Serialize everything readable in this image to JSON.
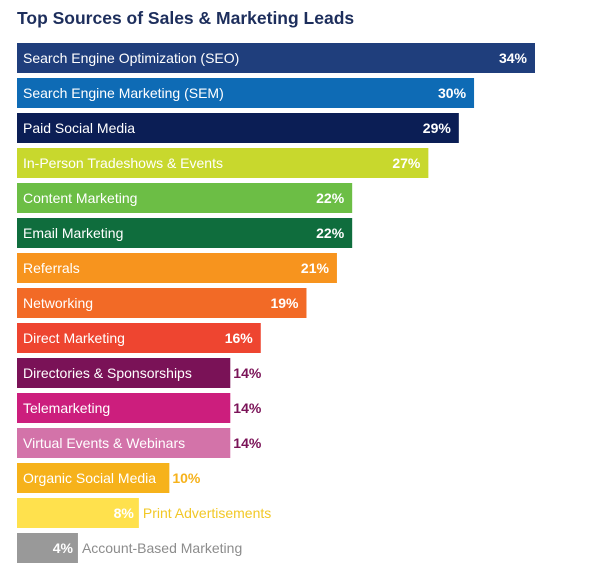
{
  "chart_data": {
    "type": "bar",
    "orientation": "horizontal",
    "title": "Top Sources of Sales & Marketing Leads",
    "xlim": [
      0,
      34
    ],
    "grid": false,
    "legend": "none",
    "bars": [
      {
        "label": "Search Engine Optimization (SEO)",
        "value": 34,
        "value_label": "34%",
        "color": "#1f3e7c",
        "inside": true
      },
      {
        "label": "Search Engine Marketing (SEM)",
        "value": 30,
        "value_label": "30%",
        "color": "#0e6bb5",
        "inside": true
      },
      {
        "label": "Paid Social Media",
        "value": 29,
        "value_label": "29%",
        "color": "#0b1e55",
        "inside": true
      },
      {
        "label": "In-Person Tradeshows & Events",
        "value": 27,
        "value_label": "27%",
        "color": "#c8d82d",
        "inside": true
      },
      {
        "label": "Content Marketing",
        "value": 22,
        "value_label": "22%",
        "color": "#6cbe45",
        "inside": true
      },
      {
        "label": "Email Marketing",
        "value": 22,
        "value_label": "22%",
        "color": "#0f6d3d",
        "inside": true
      },
      {
        "label": "Referrals",
        "value": 21,
        "value_label": "21%",
        "color": "#f7941e",
        "inside": true
      },
      {
        "label": "Networking",
        "value": 19,
        "value_label": "19%",
        "color": "#f26a26",
        "inside": true
      },
      {
        "label": "Direct Marketing",
        "value": 16,
        "value_label": "16%",
        "color": "#ee4530",
        "inside": true
      },
      {
        "label": "Directories & Sponsorships",
        "value": 14,
        "value_label": "14%",
        "color": "#7a1257",
        "inside": false,
        "value_color": "#7a1257"
      },
      {
        "label": "Telemarketing",
        "value": 14,
        "value_label": "14%",
        "color": "#cc1e7d",
        "inside": false,
        "value_color": "#7a1257"
      },
      {
        "label": "Virtual Events & Webinars",
        "value": 14,
        "value_label": "14%",
        "color": "#d373a9",
        "inside": false,
        "value_color": "#7a1257"
      },
      {
        "label": "Organic Social Media",
        "value": 10,
        "value_label": "10%",
        "color": "#f6b21b",
        "inside": false,
        "value_color": "#f6b21b"
      },
      {
        "label": "Print Advertisements",
        "value": 8,
        "value_label": "8%",
        "color": "#ffe14d",
        "label_outside": true,
        "label_color": "#f2c827"
      },
      {
        "label": "Account-Based Marketing",
        "value": 4,
        "value_label": "4%",
        "color": "#999999",
        "label_outside": true,
        "label_color": "#8c8c8c"
      }
    ]
  }
}
